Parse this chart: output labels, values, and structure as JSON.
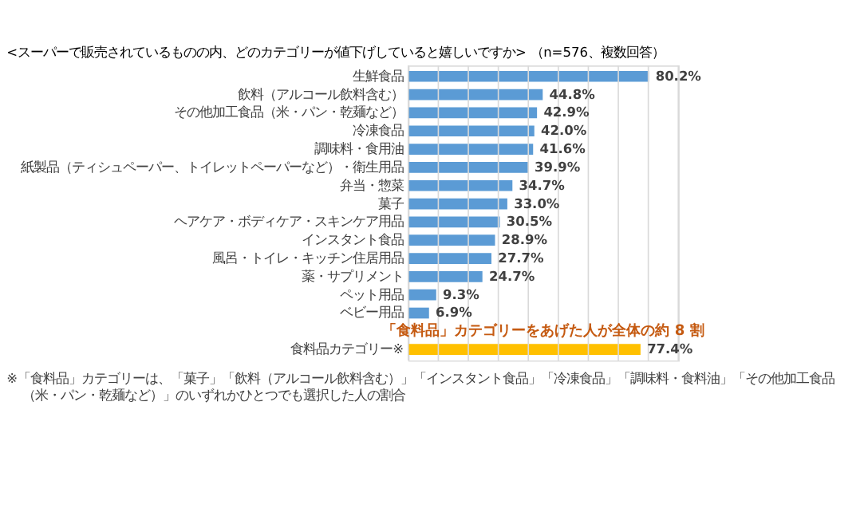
{
  "chart_data": {
    "type": "bar",
    "orientation": "horizontal",
    "title": "<スーパーで販売されているものの内、どのカテゴリーが値下げしていると嬉しいですか> （n=576、複数回答）",
    "categories": [
      "生鮮食品",
      "飲料（アルコール飲料含む）",
      "その他加工食品（米・パン・乾麺など）",
      "冷凍食品",
      "調味料・食用油",
      "紙製品（ティシュペーパー、トイレットペーパーなど）・衛生用品",
      "弁当・惣菜",
      "菓子",
      "ヘアケア・ボディケア・スキンケア用品",
      "インスタント食品",
      "風呂・トイレ・キッチン住居用品",
      "薬・サプリメント",
      "ペット用品",
      "ベビー用品",
      "食料品カテゴリー※"
    ],
    "values": [
      80.2,
      44.8,
      42.9,
      42.0,
      41.6,
      39.9,
      34.7,
      33.0,
      30.5,
      28.9,
      27.7,
      24.7,
      9.3,
      6.9,
      77.4
    ],
    "value_labels": [
      "80.2%",
      "44.8%",
      "42.9%",
      "42.0%",
      "41.6%",
      "39.9%",
      "34.7%",
      "33.0%",
      "30.5%",
      "28.9%",
      "27.7%",
      "24.7%",
      "9.3%",
      "6.9%",
      "77.4%"
    ],
    "colors": [
      "#5b9bd5",
      "#5b9bd5",
      "#5b9bd5",
      "#5b9bd5",
      "#5b9bd5",
      "#5b9bd5",
      "#5b9bd5",
      "#5b9bd5",
      "#5b9bd5",
      "#5b9bd5",
      "#5b9bd5",
      "#5b9bd5",
      "#5b9bd5",
      "#5b9bd5",
      "#ffc000"
    ],
    "xlim": [
      0,
      90
    ],
    "xticks": [
      {
        "value": 0,
        "label": null
      },
      {
        "value": 10,
        "label": null
      },
      {
        "value": 20,
        "label": null
      },
      {
        "value": 30,
        "label": null
      },
      {
        "value": 40,
        "label": null
      },
      {
        "value": 50,
        "label": null
      },
      {
        "value": 60,
        "label": null
      },
      {
        "value": 70,
        "label": null
      },
      {
        "value": 80,
        "label": null
      },
      {
        "value": 90,
        "label": null
      }
    ],
    "grid": "x",
    "tick_labels": "y",
    "annotations": [
      "「食料品」カテゴリーをあげた人が全体の約 8 割",
      "※「食料品」カテゴリーは、「菓子」「飲料（アルコール飲料含む）」「インスタント食品」「冷凍食品」「調味料・食料油」「その他加工食品",
      "（米・パン・乾麺など）」のいずれかひとつでも選択した人の割合"
    ]
  }
}
